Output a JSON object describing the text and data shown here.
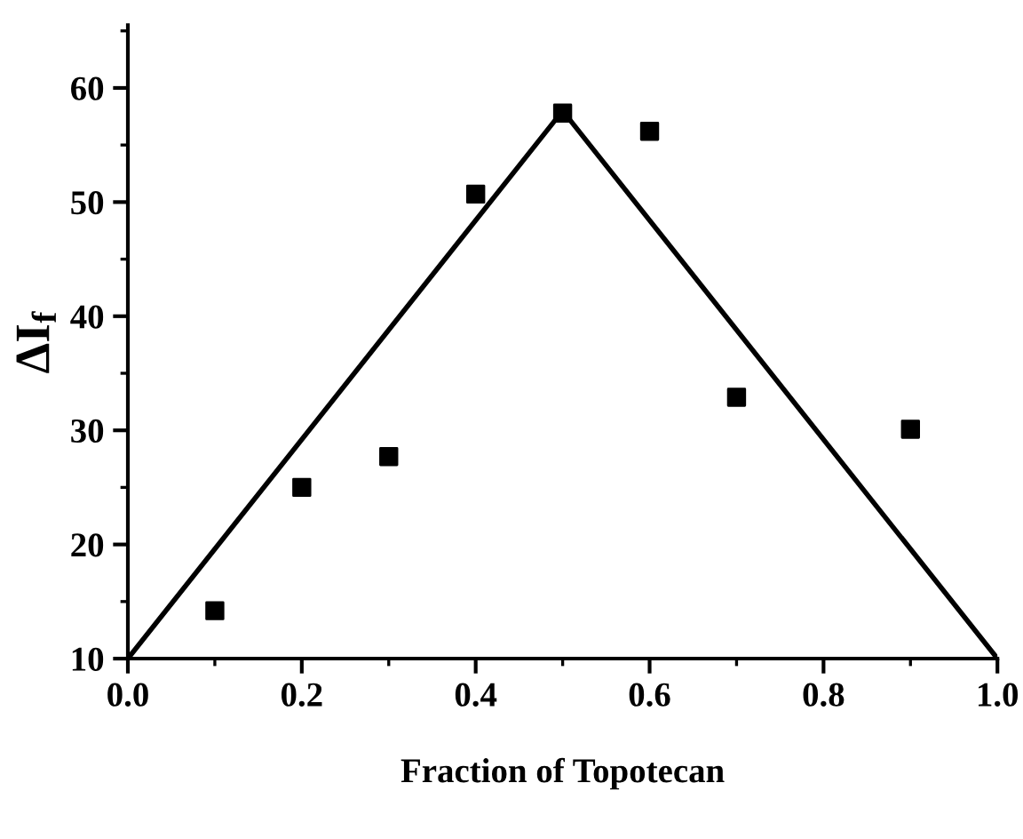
{
  "chart_data": {
    "type": "scatter",
    "xlabel": "Fraction of Topotecan",
    "ylabel": "ΔI$_{f}$",
    "xlim": [
      0.0,
      1.0
    ],
    "ylim": [
      10,
      65.5
    ],
    "xticks": [
      {
        "value": 0.0,
        "label": "0.0"
      },
      {
        "value": 0.2,
        "label": "0.2"
      },
      {
        "value": 0.4,
        "label": "0.4"
      },
      {
        "value": 0.6,
        "label": "0.6"
      },
      {
        "value": 0.8,
        "label": "0.8"
      },
      {
        "value": 1.0,
        "label": "1.0"
      }
    ],
    "yticks": [
      10,
      20,
      30,
      40,
      50,
      60
    ],
    "grid": false,
    "legend": false,
    "series": [
      {
        "color": "#000000",
        "marker": "square",
        "x": [
          0.1,
          0.2,
          0.3,
          0.4,
          0.5,
          0.6,
          0.7,
          0.9
        ],
        "values": [
          14.2,
          25.0,
          27.7,
          50.7,
          57.8,
          56.2,
          32.9,
          30.1
        ]
      },
      {
        "type": "line",
        "color": "#000000",
        "marker": "none",
        "line_style": "solid",
        "x": [
          0.0,
          0.5,
          1.0
        ],
        "values": [
          10,
          58,
          10
        ]
      }
    ]
  }
}
